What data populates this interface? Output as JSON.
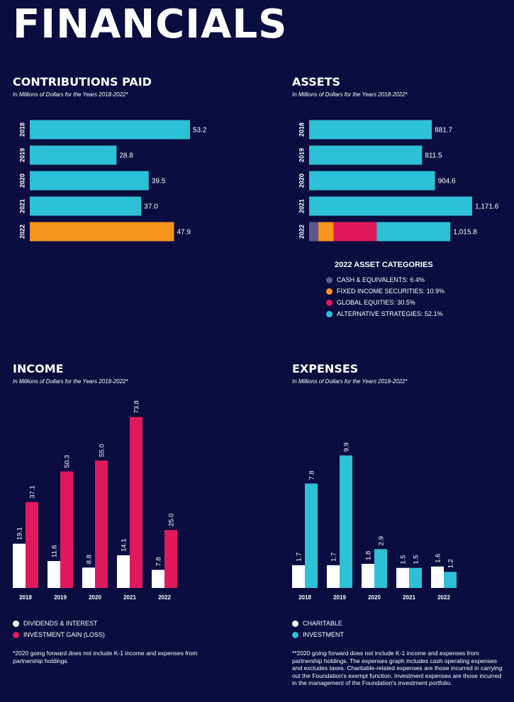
{
  "page_title": "FINANCIALS",
  "colors": {
    "background": "#0b0c3f",
    "cyan": "#2cc1d6",
    "orange": "#f7941d",
    "magenta": "#e0195d",
    "white": "#ffffff",
    "cash": "#5a5a8e"
  },
  "chart_data": [
    {
      "id": "contributions",
      "type": "bar",
      "orientation": "horizontal",
      "title": "CONTRIBUTIONS PAID",
      "subtitle": "In Millions of Dollars for the Years 2018-2022*",
      "categories": [
        "2018",
        "2019",
        "2020",
        "2021",
        "2022"
      ],
      "values": [
        53.2,
        28.8,
        39.5,
        37.0,
        47.9
      ],
      "labels": [
        "53.2",
        "28.8",
        "39.5",
        "37.0",
        "47.9"
      ],
      "bar_colors": [
        "#2cc1d6",
        "#2cc1d6",
        "#2cc1d6",
        "#2cc1d6",
        "#f7941d"
      ]
    },
    {
      "id": "assets",
      "type": "bar",
      "orientation": "horizontal",
      "title": "ASSETS",
      "subtitle": "In Millions of Dollars for the Years 2018-2022*",
      "categories": [
        "2018",
        "2019",
        "2020",
        "2021",
        "2022"
      ],
      "values": [
        881.7,
        811.5,
        904.6,
        1171.6,
        1015.8
      ],
      "labels": [
        "881.7",
        "811.5",
        "904.6",
        "1,171.6",
        "1,015.8"
      ],
      "stacked_2022": {
        "title": "2022 ASSET CATEGORIES",
        "segments": [
          {
            "name": "CASH & EQUIVALENTS: 6.4%",
            "value": 6.4,
            "color": "#5a5a8e"
          },
          {
            "name": "FIXED INCOME SECURITIES: 10.9%",
            "value": 10.9,
            "color": "#f7941d"
          },
          {
            "name": "GLOBAL EQUITIES: 30.5%",
            "value": 30.5,
            "color": "#e0195d"
          },
          {
            "name": "ALTERNATIVE STRATEGIES: 52.1%",
            "value": 52.1,
            "color": "#2cc1d6"
          }
        ]
      }
    },
    {
      "id": "income",
      "type": "bar",
      "title": "INCOME",
      "subtitle": "In Millions of Dollars for the Years 2018-2022*",
      "categories": [
        "2018",
        "2019",
        "2020",
        "2021",
        "2022"
      ],
      "series": [
        {
          "name": "DIVIDENDS & INTEREST",
          "values": [
            19.1,
            11.6,
            8.8,
            14.1,
            7.8
          ],
          "labels": [
            "19.1",
            "11.6",
            "8.8",
            "14.1",
            "7.8"
          ],
          "color": "#ffffff"
        },
        {
          "name": "INVESTMENT GAIN (LOSS)",
          "values": [
            37.1,
            50.3,
            55.0,
            73.8,
            25.0
          ],
          "labels": [
            "37.1",
            "50.3",
            "55.0",
            "73.8",
            "25.0"
          ],
          "color": "#e0195d"
        }
      ],
      "footnote": "*2020 going forward does not include K-1 income and expenses from partnership holdings."
    },
    {
      "id": "expenses",
      "type": "bar",
      "title": "EXPENSES",
      "subtitle": "In Millions of Dollars for the Years 2018-2022*",
      "categories": [
        "2018",
        "2019",
        "2020",
        "2021",
        "2022"
      ],
      "series": [
        {
          "name": "CHARITABLE",
          "values": [
            1.7,
            1.7,
            1.8,
            1.5,
            1.6
          ],
          "labels": [
            "1.7",
            "1.7",
            "1.8",
            "1.5",
            "1.6"
          ],
          "color": "#ffffff"
        },
        {
          "name": "INVESTMENT",
          "values": [
            7.8,
            9.9,
            2.9,
            1.5,
            1.2
          ],
          "labels": [
            "7.8",
            "9.9",
            "2.9",
            "1.5",
            "1.2"
          ],
          "color": "#2cc1d6"
        }
      ],
      "footnote": "**2020 going forward does not include K-1 income and expenses from partnership holdings. The expenses graph includes cash operating expenses and excludes taxes. Charitable-related expenses are those incurred in carrying out the Foundation's exempt function. Investment expenses are those incurred in the management of the Foundation's investment portfolio."
    }
  ]
}
